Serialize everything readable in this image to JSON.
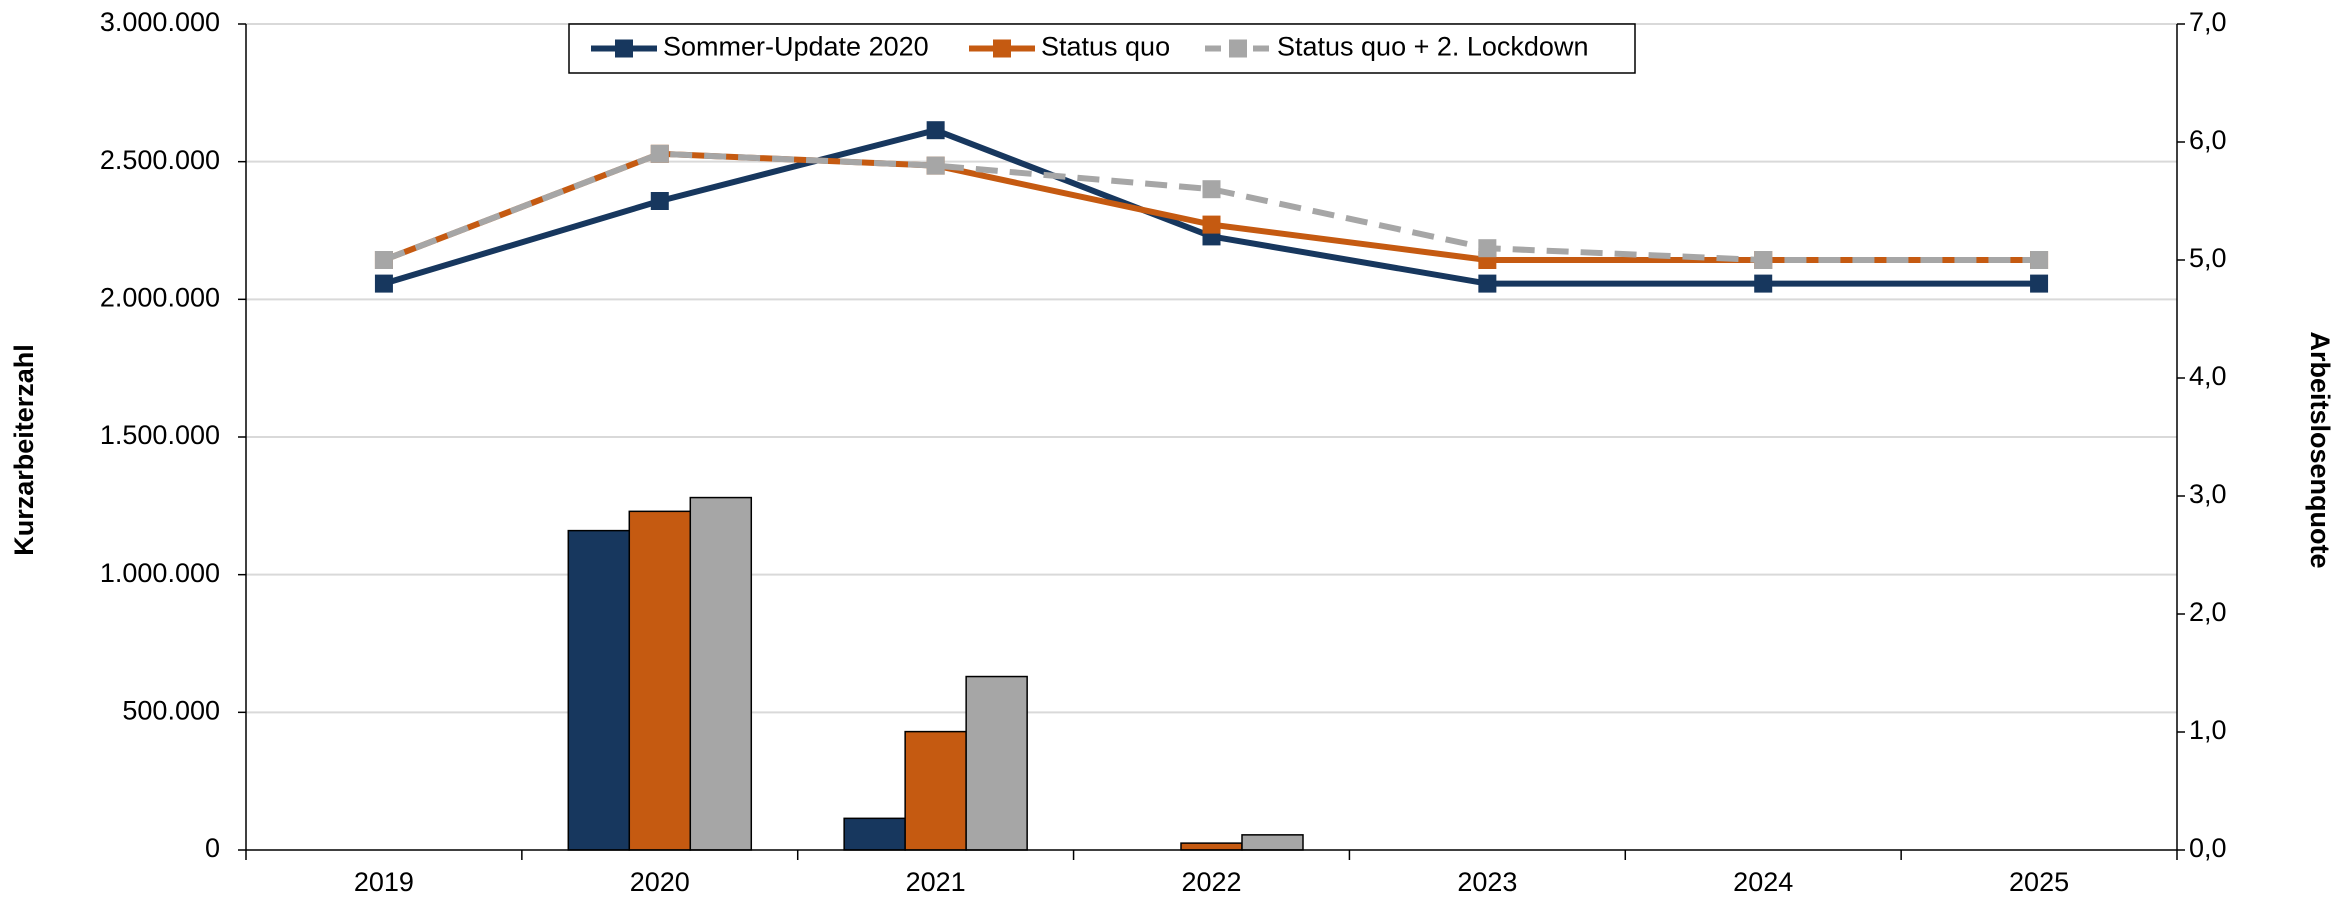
{
  "chart_data": {
    "type": "combo",
    "categories": [
      "2019",
      "2020",
      "2021",
      "2022",
      "2023",
      "2024",
      "2025"
    ],
    "ylabel": "Kurzarbeiterzahl",
    "y2label": "Arbeitslosenquote",
    "ylim": [
      0,
      3000000
    ],
    "yticks": [
      0,
      {
        "value": 500000,
        "label": "500.000"
      },
      {
        "value": 1000000,
        "label": "1.000.000"
      },
      {
        "value": 1500000,
        "label": "1.500.000"
      },
      {
        "value": 2000000,
        "label": "2.000.000"
      },
      {
        "value": 2500000,
        "label": "2.500.000"
      },
      {
        "value": 3000000,
        "label": "3.000.000"
      }
    ],
    "y2lim": [
      0,
      7
    ],
    "y2ticks": [
      {
        "value": 0,
        "label": "0,0"
      },
      {
        "value": 1,
        "label": "1,0"
      },
      {
        "value": 2,
        "label": "2,0"
      },
      {
        "value": 3,
        "label": "3,0"
      },
      {
        "value": 4,
        "label": "4,0"
      },
      {
        "value": 5,
        "label": "5,0"
      },
      {
        "value": 6,
        "label": "6,0"
      },
      {
        "value": 7,
        "label": "7,0"
      }
    ],
    "grid": true,
    "legend": "top",
    "series": [
      {
        "name": "Sommer-Update 2020",
        "color": "#17375e",
        "dashed": false,
        "axis": "y2",
        "values": [
          4.8,
          5.5,
          6.1,
          5.2,
          4.8,
          4.8,
          4.8
        ],
        "bar_values": [
          0,
          1160000,
          115000,
          0,
          0,
          0,
          0
        ]
      },
      {
        "name": "Status quo",
        "color": "#c55a11",
        "dashed": false,
        "axis": "y2",
        "values": [
          5.0,
          5.9,
          5.8,
          5.3,
          5.0,
          5.0,
          5.0
        ],
        "bar_values": [
          0,
          1230000,
          430000,
          25000,
          0,
          0,
          0
        ]
      },
      {
        "name": "Status quo + 2. Lockdown",
        "color": "#a6a6a6",
        "dashed": true,
        "axis": "y2",
        "values": [
          5.0,
          5.9,
          5.8,
          5.6,
          5.1,
          5.0,
          5.0
        ],
        "bar_values": [
          0,
          1280000,
          630000,
          55000,
          0,
          0,
          0
        ]
      }
    ]
  }
}
